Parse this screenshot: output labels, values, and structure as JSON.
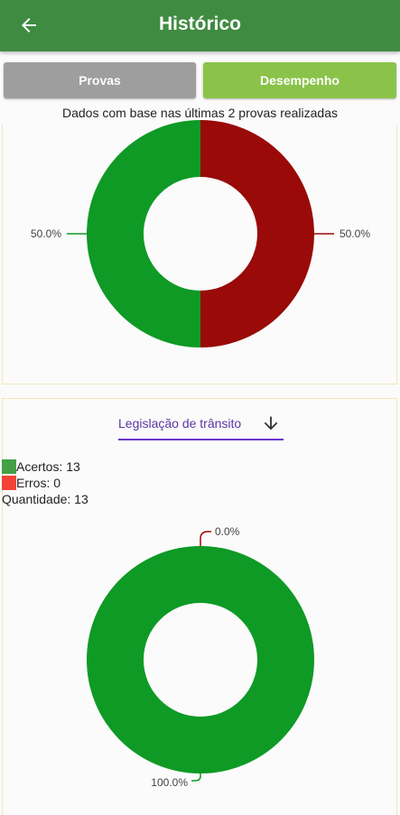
{
  "header": {
    "title": "Histórico",
    "back_icon": "arrow-left-icon"
  },
  "tabs": [
    {
      "label": "Provas",
      "color": "#9e9e9e"
    },
    {
      "label": "Desempenho",
      "color": "#8bc34a"
    }
  ],
  "info_text": "Dados com base nas últimas 2 provas realizadas",
  "filter": {
    "selected": "Legislação de trânsito",
    "icon": "arrow-down-icon"
  },
  "legend": {
    "acertos": {
      "label": "Acertos: 13",
      "color": "#43a047"
    },
    "erros": {
      "label": "Erros: 0",
      "color": "#f44336"
    },
    "quantidade": "Quantidade: 13"
  },
  "chart_data": [
    {
      "type": "pie",
      "categories": [
        "Acertos",
        "Erros"
      ],
      "values": [
        50.0,
        50.0
      ],
      "labels": [
        "50.0%",
        "50.0%"
      ],
      "colors": [
        "#0e9a25",
        "#990a08"
      ]
    },
    {
      "type": "pie",
      "categories": [
        "Acertos",
        "Erros"
      ],
      "values": [
        100.0,
        0.0
      ],
      "labels": [
        "100.0%",
        "0.0%"
      ],
      "colors": [
        "#0e9a25",
        "#990a08"
      ]
    }
  ]
}
